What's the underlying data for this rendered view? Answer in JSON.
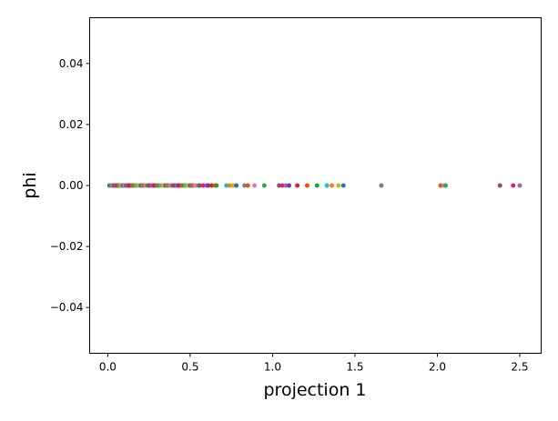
{
  "chart_data": {
    "type": "scatter",
    "xlabel": "projection 1",
    "ylabel": "phi",
    "xlim": [
      -0.11,
      2.63
    ],
    "ylim": [
      -0.055,
      0.055
    ],
    "xticks": [
      0.0,
      0.5,
      1.0,
      1.5,
      2.0,
      2.5
    ],
    "xtick_labels": [
      "0.0",
      "0.5",
      "1.0",
      "1.5",
      "2.0",
      "2.5"
    ],
    "yticks": [
      0.04,
      0.02,
      0.0,
      -0.02,
      -0.04
    ],
    "ytick_labels": [
      "0.04",
      "0.02",
      "0.00",
      "−0.02",
      "−0.04"
    ],
    "grid": false,
    "palette": [
      "#1f77b4",
      "#ff7f0e",
      "#2ca02c",
      "#d62728",
      "#9467bd",
      "#8c564b",
      "#e377c2",
      "#7f7f7f",
      "#bcbd22",
      "#17becf",
      "#e6550d",
      "#6a3d9a",
      "#e41a7c",
      "#31a354",
      "#d95f02"
    ],
    "series": [
      {
        "x": [
          0.01,
          0.02,
          0.025,
          0.03,
          0.035,
          0.04,
          0.045,
          0.05,
          0.055,
          0.06,
          0.065,
          0.07,
          0.075,
          0.08,
          0.085,
          0.09,
          0.095,
          0.1,
          0.105,
          0.11,
          0.115,
          0.12,
          0.125,
          0.13,
          0.14,
          0.15,
          0.16,
          0.17,
          0.18,
          0.19,
          0.2,
          0.21,
          0.22,
          0.23,
          0.24,
          0.25,
          0.26,
          0.27,
          0.28,
          0.29,
          0.3,
          0.31,
          0.32,
          0.33,
          0.34,
          0.35,
          0.36,
          0.37,
          0.38,
          0.39,
          0.4,
          0.41,
          0.42,
          0.43,
          0.44,
          0.45,
          0.46,
          0.47,
          0.48,
          0.49,
          0.5,
          0.51,
          0.52,
          0.53,
          0.55,
          0.56,
          0.58,
          0.6,
          0.61,
          0.63,
          0.65,
          0.66,
          0.72,
          0.74,
          0.76,
          0.78,
          0.83,
          0.85,
          0.89,
          0.95,
          1.04,
          1.06,
          1.08,
          1.1,
          1.15,
          1.21,
          1.27,
          1.33,
          1.36,
          1.4,
          1.43,
          1.66,
          2.02,
          2.04,
          2.05,
          2.38,
          2.46,
          2.5
        ],
        "y": [
          0.0,
          0.0,
          0.0,
          0.0,
          0.0,
          0.0,
          0.0,
          0.0,
          0.0,
          0.0,
          0.0,
          0.0,
          0.0,
          0.0,
          0.0,
          0.0,
          0.0,
          0.0,
          0.0,
          0.0,
          0.0,
          0.0,
          0.0,
          0.0,
          0.0,
          0.0,
          0.0,
          0.0,
          0.0,
          0.0,
          0.0,
          0.0,
          0.0,
          0.0,
          0.0,
          0.0,
          0.0,
          0.0,
          0.0,
          0.0,
          0.0,
          0.0,
          0.0,
          0.0,
          0.0,
          0.0,
          0.0,
          0.0,
          0.0,
          0.0,
          0.0,
          0.0,
          0.0,
          0.0,
          0.0,
          0.0,
          0.0,
          0.0,
          0.0,
          0.0,
          0.0,
          0.0,
          0.0,
          0.0,
          0.0,
          0.0,
          0.0,
          0.0,
          0.0,
          0.0,
          0.0,
          0.0,
          0.0,
          0.0,
          0.0,
          0.0,
          0.0,
          0.0,
          0.0,
          0.0,
          0.0,
          0.0,
          0.0,
          0.0,
          0.0,
          0.0,
          0.0,
          0.0,
          0.0,
          0.0,
          0.0,
          0.0,
          0.0,
          0.0,
          0.0,
          0.0,
          0.0,
          0.0
        ]
      }
    ]
  }
}
